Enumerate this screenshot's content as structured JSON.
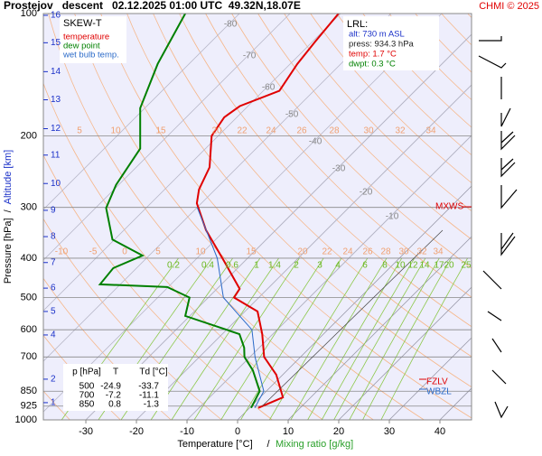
{
  "chart_data": {
    "type": "skewt",
    "title": "Prostejov   descent   02.12.2025 01:00 UTC  49.32N,18.07E",
    "credit": "CHMI © 2025",
    "diagram_label": "SKEW-T",
    "xlabel": "Temperature [°C]",
    "xlabel_separator": "/",
    "xlabel2": "Mixing ratio [g/kg]",
    "ylabel": "Pressure [hPa]",
    "ylabel_separator": "/",
    "ylabel2": "Altitude [km]",
    "log_y": true,
    "xlim": [
      -38.4,
      46.25
    ],
    "ylim": [
      1000,
      100
    ],
    "xticks": [
      -30,
      -20,
      -10,
      0,
      10,
      20,
      30,
      40
    ],
    "yticks": [
      100,
      200,
      300,
      400,
      500,
      600,
      700,
      850,
      925,
      1000
    ],
    "altitude_ticks": [
      {
        "value": 907,
        "label": "1"
      },
      {
        "value": 794,
        "label": "2"
      },
      {
        "value": 618,
        "label": "4"
      },
      {
        "value": 541,
        "label": "5"
      },
      {
        "value": 474,
        "label": "6"
      },
      {
        "value": 410,
        "label": "7"
      },
      {
        "value": 354,
        "label": "8"
      },
      {
        "value": 305,
        "label": "9"
      },
      {
        "value": 262,
        "label": "10"
      },
      {
        "value": 223,
        "label": "11"
      },
      {
        "value": 192,
        "label": "12"
      },
      {
        "value": 163,
        "label": "13"
      },
      {
        "value": 139,
        "label": "14"
      },
      {
        "value": 118,
        "label": "15"
      },
      {
        "value": 101,
        "label": "16"
      }
    ],
    "isotherm_labels": [
      -80,
      -70,
      -60,
      -50,
      -40,
      -30,
      -20,
      -10
    ],
    "mixing_ratios": [
      0.2,
      0.4,
      0.6,
      1,
      1.4,
      2,
      3,
      4,
      6,
      8,
      10,
      12,
      14,
      17,
      20,
      25
    ],
    "adiabat_labels_upper": [
      5,
      10,
      15,
      20,
      22,
      24,
      26,
      28,
      30,
      32,
      34
    ],
    "adiabat_labels_lower": [
      -10,
      -5,
      0,
      5,
      10,
      15,
      20,
      22,
      24,
      26,
      28,
      30,
      32,
      34
    ],
    "series": [
      {
        "name": "temperature",
        "color": "#e00000",
        "p": [
          934,
          880,
          774,
          700,
          615,
          541,
          500,
          476,
          408,
          341,
          293,
          271,
          239,
          200,
          180,
          169,
          155,
          133,
          117,
          100
        ],
        "values": [
          1.7,
          4.5,
          -1.3,
          -7.2,
          -12.1,
          -17.5,
          -24.9,
          -25.5,
          -33.9,
          -43.8,
          -50.9,
          -53.2,
          -55.5,
          -61.3,
          -62.5,
          -61.6,
          -56.8,
          -58.6,
          -59.5,
          -60.4
        ]
      },
      {
        "name": "dew point",
        "color": "#008000",
        "p": [
          934,
          850,
          755,
          700,
          664,
          615,
          555,
          500,
          471,
          464,
          423,
          394,
          360,
          301,
          264,
          215,
          171,
          133,
          100
        ],
        "values": [
          0.3,
          -1.3,
          -6.8,
          -11.1,
          -13,
          -16.6,
          -30.9,
          -33.7,
          -40.2,
          -54,
          -54.6,
          -51.3,
          -60.4,
          -67.9,
          -70.5,
          -72.9,
          -80.9,
          -86.2,
          -90.7
        ]
      },
      {
        "name": "wet bulb temp.",
        "color": "#2a6ac8",
        "p": [
          934,
          850,
          700,
          600,
          500,
          400,
          300
        ],
        "values": [
          1,
          -0.5,
          -9,
          -15,
          -27,
          -36,
          -50
        ]
      }
    ],
    "info_box": {
      "title": "LRL:",
      "altitude": "alt: 730 m ASL",
      "pressure": "press: 934.3 hPa",
      "temperature": "temp: 1.7 °C",
      "dewpoint": "dwpt: 0.3 °C"
    },
    "levels": {
      "max_wind": "MXWS",
      "freezing": "FZLV",
      "wet_bulb_zero": "WBZL"
    },
    "table": {
      "header": [
        "p [hPa]",
        "T",
        "Td [°C]"
      ],
      "rows": [
        [
          "500",
          "-24.9",
          "-33.7"
        ],
        [
          "700",
          "-7.2",
          "-11.1"
        ],
        [
          "850",
          "0.8",
          "-1.3"
        ]
      ]
    }
  }
}
